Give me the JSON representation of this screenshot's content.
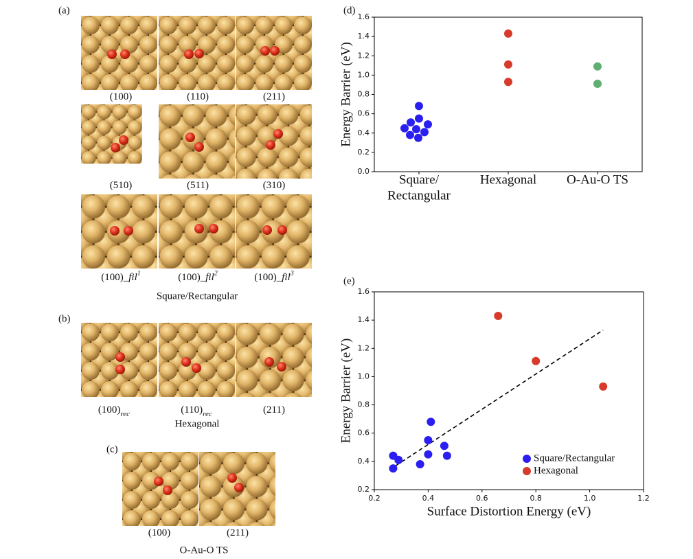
{
  "figure": {
    "panels": [
      {
        "label": "(a)",
        "tiles": [
          {
            "text": "(100)"
          },
          {
            "text": "(110)"
          },
          {
            "text": "(211)"
          },
          {
            "text": "(510)"
          },
          {
            "text": "(511)"
          },
          {
            "text": "(310)"
          },
          {
            "text": "(100)_",
            "italic": "fil",
            "sup": "1"
          },
          {
            "text": "(100)_",
            "italic": "fil",
            "sup": "2"
          },
          {
            "text": "(100)_",
            "italic": "fil",
            "sup": "3"
          }
        ],
        "caption": "Square/Rectangular"
      },
      {
        "label": "(b)",
        "tiles": [
          {
            "text": "(100)",
            "sub": "rec"
          },
          {
            "text": "(110)",
            "sub": "rec"
          },
          {
            "text": "(211)"
          }
        ],
        "caption": "Hexagonal"
      },
      {
        "label": "(c)",
        "tiles": [
          {
            "text": "(100)"
          },
          {
            "text": "(211)"
          }
        ],
        "caption": "O-Au-O TS"
      }
    ]
  },
  "chart_data": [
    {
      "type": "strip",
      "panel_label": "(d)",
      "ylabel": "Energy Barrier (eV)",
      "categories": [
        [
          "Square/",
          "Rectangular"
        ],
        [
          "Hexagonal"
        ],
        [
          "O-Au-O TS"
        ]
      ],
      "series": [
        {
          "color": "#2a1ff0",
          "values": [
            0.68,
            0.55,
            0.51,
            0.49,
            0.45,
            0.44,
            0.41,
            0.38,
            0.35
          ]
        },
        {
          "color": "#d63b2b",
          "values": [
            1.43,
            1.11,
            0.93
          ]
        },
        {
          "color": "#5fae72",
          "values": [
            1.09,
            0.91
          ]
        }
      ],
      "ylim": [
        0,
        1.6
      ],
      "yticks": [
        {
          "value": 0,
          "label": "0.0"
        },
        0.2,
        0.4,
        0.6,
        0.8,
        {
          "value": 1,
          "label": "1.0"
        },
        1.2,
        1.4,
        1.6
      ]
    },
    {
      "type": "scatter",
      "panel_label": "(e)",
      "xlabel": "Surface Distortion Energy (eV)",
      "ylabel": "Energy Barrier (eV)",
      "series": [
        {
          "name": "Square/Rectangular",
          "color": "#2a1ff0",
          "x": [
            0.27,
            0.27,
            0.29,
            0.37,
            0.4,
            0.4,
            0.41,
            0.46,
            0.47
          ],
          "values": [
            0.44,
            0.35,
            0.41,
            0.38,
            0.55,
            0.45,
            0.68,
            0.51,
            0.44
          ]
        },
        {
          "name": "Hexagonal",
          "color": "#d63b2b",
          "x": [
            0.66,
            0.8,
            1.05
          ],
          "values": [
            1.43,
            1.11,
            0.93
          ]
        }
      ],
      "trendline": {
        "x": [
          0.28,
          1.05
        ],
        "y": [
          0.37,
          1.33
        ]
      },
      "legend": "lower right",
      "xlim": [
        0.2,
        1.2
      ],
      "xticks": [
        0.2,
        0.4,
        0.6,
        0.8,
        {
          "value": 1,
          "label": "1.0"
        },
        1.2
      ],
      "ylim": [
        0.2,
        1.6
      ],
      "yticks": [
        0.2,
        0.4,
        0.6,
        0.8,
        {
          "value": 1,
          "label": "1.0"
        },
        1.2,
        1.4,
        1.6
      ]
    }
  ]
}
